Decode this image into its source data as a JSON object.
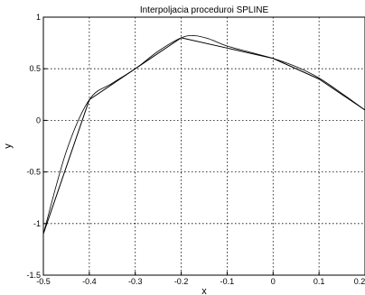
{
  "chart_data": {
    "type": "line",
    "title": "Interpoljacia proceduroi SPLINE",
    "xlabel": "x",
    "ylabel": "y",
    "xlim": [
      -0.5,
      0.2
    ],
    "ylim": [
      -1.5,
      1
    ],
    "grid": true,
    "x_ticks": [
      "-0.5",
      "-0.4",
      "-0.3",
      "-0.2",
      "-0.1",
      "0",
      "0.1",
      "0.2"
    ],
    "y_ticks": [
      "-1.5",
      "-1",
      "-0.5",
      "0",
      "0.5",
      "1"
    ],
    "series": [
      {
        "type": "polyline",
        "x": [
          -0.5,
          -0.4,
          -0.3,
          -0.2,
          -0.1,
          0.0,
          0.1,
          0.2
        ],
        "y": [
          -1.1,
          0.2,
          0.5,
          0.8,
          0.7,
          0.6,
          0.4,
          0.1
        ]
      },
      {
        "type": "spline",
        "x": [
          -0.5,
          -0.45,
          -0.4,
          -0.35,
          -0.3,
          -0.25,
          -0.2,
          -0.17,
          -0.14,
          -0.1,
          -0.05,
          0.0,
          0.05,
          0.1,
          0.15,
          0.2
        ],
        "y": [
          -1.1,
          -0.3,
          0.2,
          0.36,
          0.5,
          0.67,
          0.8,
          0.82,
          0.79,
          0.72,
          0.66,
          0.6,
          0.52,
          0.41,
          0.26,
          0.1
        ]
      }
    ],
    "line_color": "#000000",
    "grid_color": "#000000"
  }
}
